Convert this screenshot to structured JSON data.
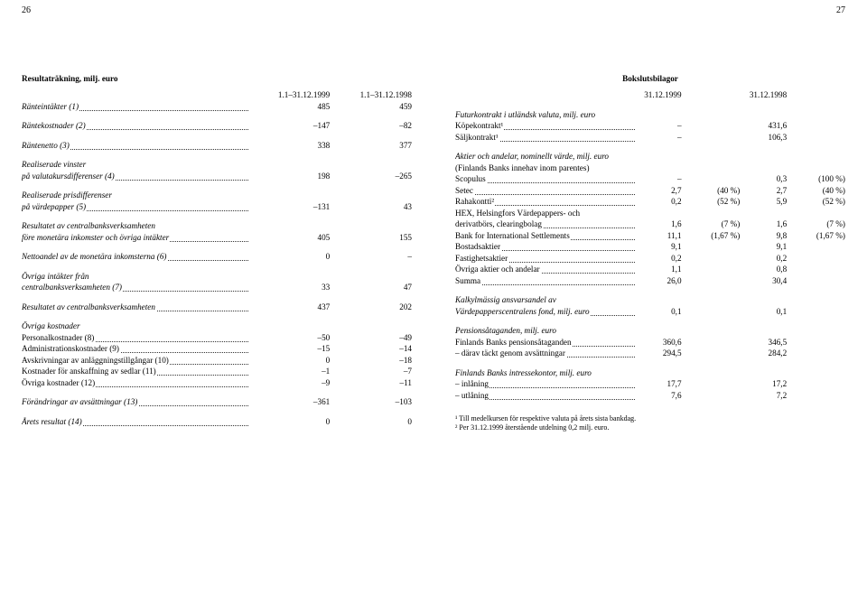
{
  "left": {
    "pagenum": "26",
    "title": "Resultaträkning, milj. euro",
    "header": [
      "1.1–31.12.1999",
      "1.1–31.12.1998"
    ],
    "rows": [
      {
        "label": "Ränteintäkter (1)",
        "dots": true,
        "v1": "485",
        "v2": "459",
        "italic": true
      },
      {
        "gap": true
      },
      {
        "label": "Räntekostnader (2)",
        "dots": true,
        "v1": "–147",
        "v2": "–82",
        "italic": true
      },
      {
        "gap": true
      },
      {
        "label": "Räntenetto (3)",
        "dots": true,
        "v1": "338",
        "v2": "377",
        "italic": true
      },
      {
        "gap": true
      },
      {
        "label": "Realiserade vinster",
        "italic": true,
        "v1": "",
        "v2": ""
      },
      {
        "label": "på valutakursdifferenser (4)",
        "dots": true,
        "v1": "198",
        "v2": "–265",
        "italic": true
      },
      {
        "gap": true
      },
      {
        "label": "Realiserade prisdifferenser",
        "italic": true,
        "v1": "",
        "v2": ""
      },
      {
        "label": "på värdepapper (5)",
        "dots": true,
        "v1": "–131",
        "v2": "43",
        "italic": true
      },
      {
        "gap": true
      },
      {
        "label": "Resultatet av centralbanksverksamheten",
        "italic": true,
        "v1": "",
        "v2": ""
      },
      {
        "label": "före monetära inkomster och övriga intäkter",
        "dots": true,
        "v1": "405",
        "v2": "155",
        "italic": true
      },
      {
        "gap": true
      },
      {
        "label": "Nettoandel av de monetära inkomsterna (6)",
        "dots": true,
        "v1": "0",
        "v2": "–",
        "italic": true
      },
      {
        "gap": true
      },
      {
        "label": "Övriga intäkter från",
        "italic": true,
        "v1": "",
        "v2": ""
      },
      {
        "label": "centralbanksverksamheten (7)",
        "dots": true,
        "v1": "33",
        "v2": "47",
        "italic": true
      },
      {
        "gap": true
      },
      {
        "label": "Resultatet av centralbanksverksamheten",
        "dots": true,
        "v1": "437",
        "v2": "202",
        "italic": true
      },
      {
        "gap": true
      },
      {
        "label": "Övriga kostnader",
        "italic": true,
        "v1": "",
        "v2": ""
      },
      {
        "label": "Personalkostnader (8)",
        "dots": true,
        "v1": "–50",
        "v2": "–49"
      },
      {
        "label": "Administrationskostnader (9)",
        "dots": true,
        "v1": "–15",
        "v2": "–14"
      },
      {
        "label": "Avskrivningar av anläggningstillgångar (10)",
        "dots": true,
        "v1": "0",
        "v2": "–18"
      },
      {
        "label": "Kostnader för anskaffning av sedlar (11)",
        "dots": true,
        "v1": "–1",
        "v2": "–7"
      },
      {
        "label": "Övriga kostnader (12)",
        "dots": true,
        "v1": "–9",
        "v2": "–11"
      },
      {
        "gap": true
      },
      {
        "label": "Förändringar av avsättningar (13)",
        "dots": true,
        "v1": "–361",
        "v2": "–103",
        "italic": true
      },
      {
        "gap": true
      },
      {
        "label": "Årets resultat (14)",
        "dots": true,
        "v1": "0",
        "v2": "0",
        "italic": true
      }
    ]
  },
  "right": {
    "pagenum": "27",
    "title": "Bokslutsbilagor",
    "header": [
      "31.12.1999",
      "",
      "31.12.1998",
      ""
    ],
    "sections": [
      {
        "heading": "Futurkontrakt i utländsk valuta, milj. euro",
        "rows": [
          {
            "label": "Köpekontrakt¹",
            "dots": true,
            "c1": "–",
            "c2": "",
            "c3": "431,6",
            "c4": ""
          },
          {
            "label": "Säljkontrakt¹",
            "dots": true,
            "c1": "–",
            "c2": "",
            "c3": "106,3",
            "c4": ""
          }
        ]
      },
      {
        "heading": "Aktier och andelar, nominellt värde, milj. euro",
        "sub": "(Finlands Banks innehav inom parentes)",
        "rows": [
          {
            "label": "Scopulus",
            "dots": true,
            "c1": "–",
            "c2": "",
            "c3": "0,3",
            "c4": "(100 %)"
          },
          {
            "label": "Setec",
            "dots": true,
            "c1": "2,7",
            "c2": "(40 %)",
            "c3": "2,7",
            "c4": "(40 %)"
          },
          {
            "label": "Rahakontti²",
            "dots": true,
            "c1": "0,2",
            "c2": "(52 %)",
            "c3": "5,9",
            "c4": "(52 %)"
          },
          {
            "label": "HEX, Helsingfors Värdepappers- och",
            "dots": false,
            "c1": "",
            "c2": "",
            "c3": "",
            "c4": ""
          },
          {
            "label": "derivatbörs, clearingbolag",
            "dots": true,
            "c1": "1,6",
            "c2": "(7 %)",
            "c3": "1,6",
            "c4": "(7 %)"
          },
          {
            "label": "Bank for International Settlements",
            "dots": true,
            "c1": "11,1",
            "c2": "(1,67 %)",
            "c3": "9,8",
            "c4": "(1,67 %)"
          },
          {
            "label": "Bostadsaktier",
            "dots": true,
            "c1": "9,1",
            "c2": "",
            "c3": "9,1",
            "c4": ""
          },
          {
            "label": "Fastighetsaktier",
            "dots": true,
            "c1": "0,2",
            "c2": "",
            "c3": "0,2",
            "c4": ""
          },
          {
            "label": "Övriga aktier och andelar",
            "dots": true,
            "c1": "1,1",
            "c2": "",
            "c3": "0,8",
            "c4": ""
          },
          {
            "label": "Summa",
            "dots": true,
            "c1": "26,0",
            "c2": "",
            "c3": "30,4",
            "c4": ""
          }
        ]
      },
      {
        "heading": "Kalkylmässig ansvarsandel av",
        "rows": [
          {
            "label": "Värdepapperscentralens fond, milj. euro",
            "dots": true,
            "c1": "0,1",
            "c2": "",
            "c3": "0,1",
            "c4": "",
            "italic": true
          }
        ]
      },
      {
        "heading": "Pensionsåtaganden, milj. euro",
        "rows": [
          {
            "label": "Finlands Banks pensionsåtaganden",
            "dots": true,
            "c1": "360,6",
            "c2": "",
            "c3": "346,5",
            "c4": ""
          },
          {
            "label": "– därav täckt genom avsättningar",
            "dots": true,
            "c1": "294,5",
            "c2": "",
            "c3": "284,2",
            "c4": ""
          }
        ]
      },
      {
        "heading": "Finlands Banks intressekontor, milj. euro",
        "rows": [
          {
            "label": "– inlåning",
            "dots": true,
            "c1": "17,7",
            "c2": "",
            "c3": "17,2",
            "c4": ""
          },
          {
            "label": "– utlåning",
            "dots": true,
            "c1": "7,6",
            "c2": "",
            "c3": "7,2",
            "c4": ""
          }
        ]
      }
    ],
    "footnotes": [
      "¹ Till medelkursen för respektive valuta på årets sista bankdag.",
      "² Per 31.12.1999 återstående utdelning 0,2 milj. euro."
    ]
  }
}
